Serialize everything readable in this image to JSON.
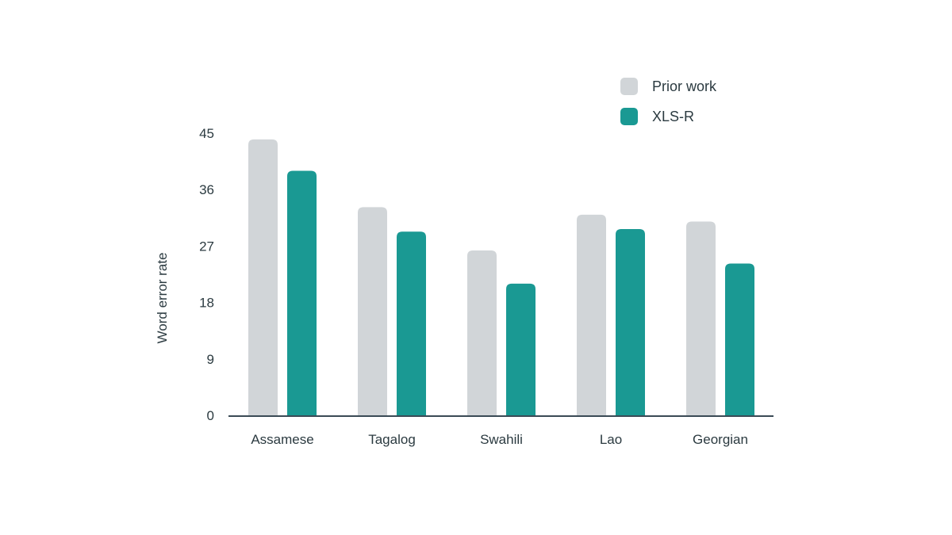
{
  "chart_data": {
    "type": "bar",
    "categories": [
      "Assamese",
      "Tagalog",
      "Swahili",
      "Lao",
      "Georgian"
    ],
    "series": [
      {
        "name": "Prior work",
        "values": [
          44.0,
          33.2,
          26.3,
          32.0,
          30.9
        ],
        "color": "#d1d5d8"
      },
      {
        "name": "XLS-R",
        "values": [
          39.0,
          29.3,
          21.0,
          29.7,
          24.2
        ],
        "color": "#1a9993"
      }
    ],
    "title": "",
    "xlabel": "",
    "ylabel": "Word error rate",
    "ylim": [
      0,
      45
    ],
    "yticks": [
      "0",
      "9",
      "18",
      "27",
      "36",
      "45"
    ],
    "grid": false,
    "legend_position": "top-right"
  }
}
